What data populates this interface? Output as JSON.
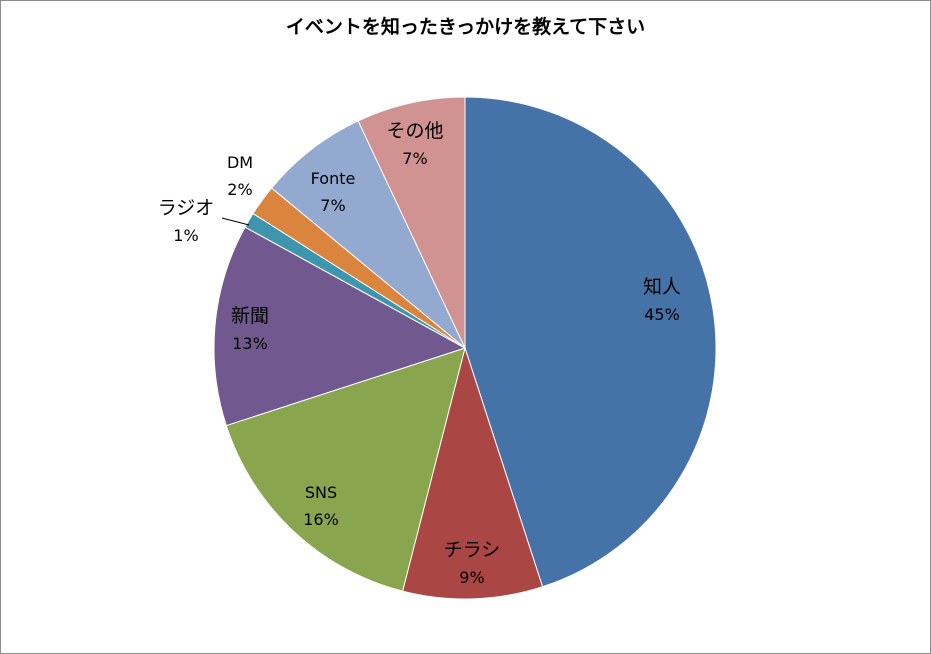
{
  "chart_data": {
    "type": "pie",
    "title": "イベントを知ったきっかけを教えて下さい",
    "slices": [
      {
        "label": "知人",
        "value": 45,
        "value_label": "45%",
        "color": "#4572a7"
      },
      {
        "label": "チラシ",
        "value": 9,
        "value_label": "9%",
        "color": "#aa4643"
      },
      {
        "label": "SNS",
        "value": 16,
        "value_label": "16%",
        "color": "#89a54e"
      },
      {
        "label": "新聞",
        "value": 13,
        "value_label": "13%",
        "color": "#71588f"
      },
      {
        "label": "ラジオ",
        "value": 1,
        "value_label": "1%",
        "color": "#3d96ae"
      },
      {
        "label": "DM",
        "value": 2,
        "value_label": "2%",
        "color": "#db843d"
      },
      {
        "label": "Fonte",
        "value": 7,
        "value_label": "7%",
        "color": "#93a9cf"
      },
      {
        "label": "その他",
        "value": 7,
        "value_label": "7%",
        "color": "#d09392"
      }
    ],
    "start_angle_deg": 0,
    "direction": "clockwise",
    "legend": "none",
    "data_labels": "category-and-percent"
  }
}
